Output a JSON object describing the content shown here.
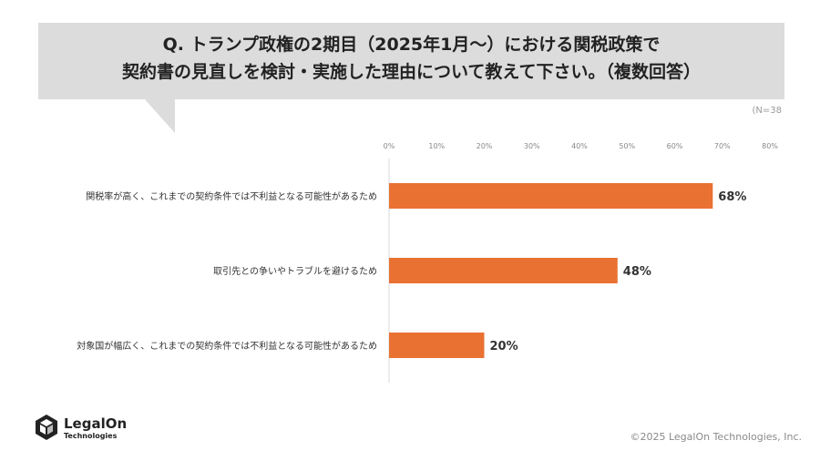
{
  "question": {
    "line1": "Q. トランプ政権の2期目（2025年1月～）における関税政策で",
    "line2": "契約書の見直しを検討・実施した理由について教えて下さい。（複数回答）"
  },
  "sample_size": "(N=38",
  "chart_data": {
    "type": "bar",
    "orientation": "horizontal",
    "categories": [
      "関税率が高く、これまでの契約条件では不利益となる可能性があるため",
      "取引先との争いやトラブルを避けるため",
      "対象国が幅広く、これまでの契約条件では不利益となる可能性があるため"
    ],
    "values": [
      68,
      48,
      20
    ],
    "data_labels": [
      "68%",
      "48%",
      "20%"
    ],
    "xlim": [
      0,
      80
    ],
    "ticks": [
      "0%",
      "10%",
      "20%",
      "30%",
      "40%",
      "50%",
      "60%",
      "70%",
      "80%"
    ],
    "tick_values": [
      0,
      10,
      20,
      30,
      40,
      50,
      60,
      70,
      80
    ],
    "bar_color": "#e97132",
    "grid": false
  },
  "footer": {
    "copyright": "©2025 LegalOn Technologies, Inc.",
    "logo_name": "LegalOn",
    "logo_sub": "Technologies"
  }
}
